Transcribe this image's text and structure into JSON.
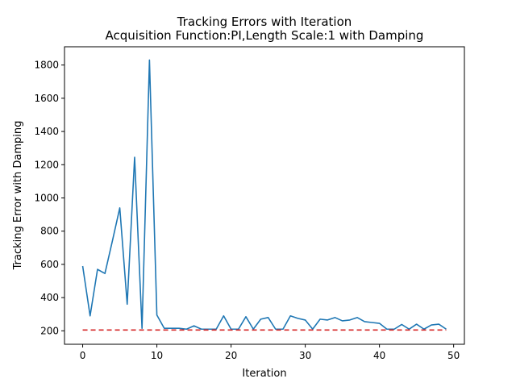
{
  "chart_data": {
    "type": "line",
    "title": "Tracking Errors with Iteration",
    "subtitle": "Acquisition Function:PI,Length Scale:1 with Damping",
    "xlabel": "Iteration",
    "ylabel": "Tracking Error with Damping",
    "xlim": [
      -2.45,
      51.45
    ],
    "ylim": [
      119,
      1910
    ],
    "xticks": [
      0,
      10,
      20,
      30,
      40,
      50
    ],
    "yticks": [
      200,
      400,
      600,
      800,
      1000,
      1200,
      1400,
      1600,
      1800
    ],
    "grid": false,
    "series": [
      {
        "style": "solid",
        "color": "#1f77b4",
        "x": [
          0,
          1,
          2,
          3,
          4,
          5,
          6,
          7,
          8,
          9,
          10,
          11,
          12,
          13,
          14,
          15,
          16,
          17,
          18,
          19,
          20,
          21,
          22,
          23,
          24,
          25,
          26,
          27,
          28,
          29,
          30,
          31,
          32,
          33,
          34,
          35,
          36,
          37,
          38,
          39,
          40,
          41,
          42,
          43,
          44,
          45,
          46,
          47,
          48,
          49
        ],
        "values": [
          590,
          290,
          570,
          545,
          740,
          940,
          360,
          1245,
          215,
          1830,
          295,
          215,
          215,
          215,
          210,
          230,
          210,
          210,
          210,
          290,
          210,
          210,
          285,
          210,
          270,
          280,
          210,
          210,
          290,
          275,
          265,
          210,
          270,
          265,
          280,
          260,
          265,
          280,
          255,
          250,
          245,
          210,
          210,
          238,
          210,
          240,
          210,
          235,
          240,
          210
        ]
      },
      {
        "style": "dashed",
        "color": "#d62728",
        "x": [
          0,
          49
        ],
        "values": [
          205,
          205
        ]
      }
    ]
  }
}
